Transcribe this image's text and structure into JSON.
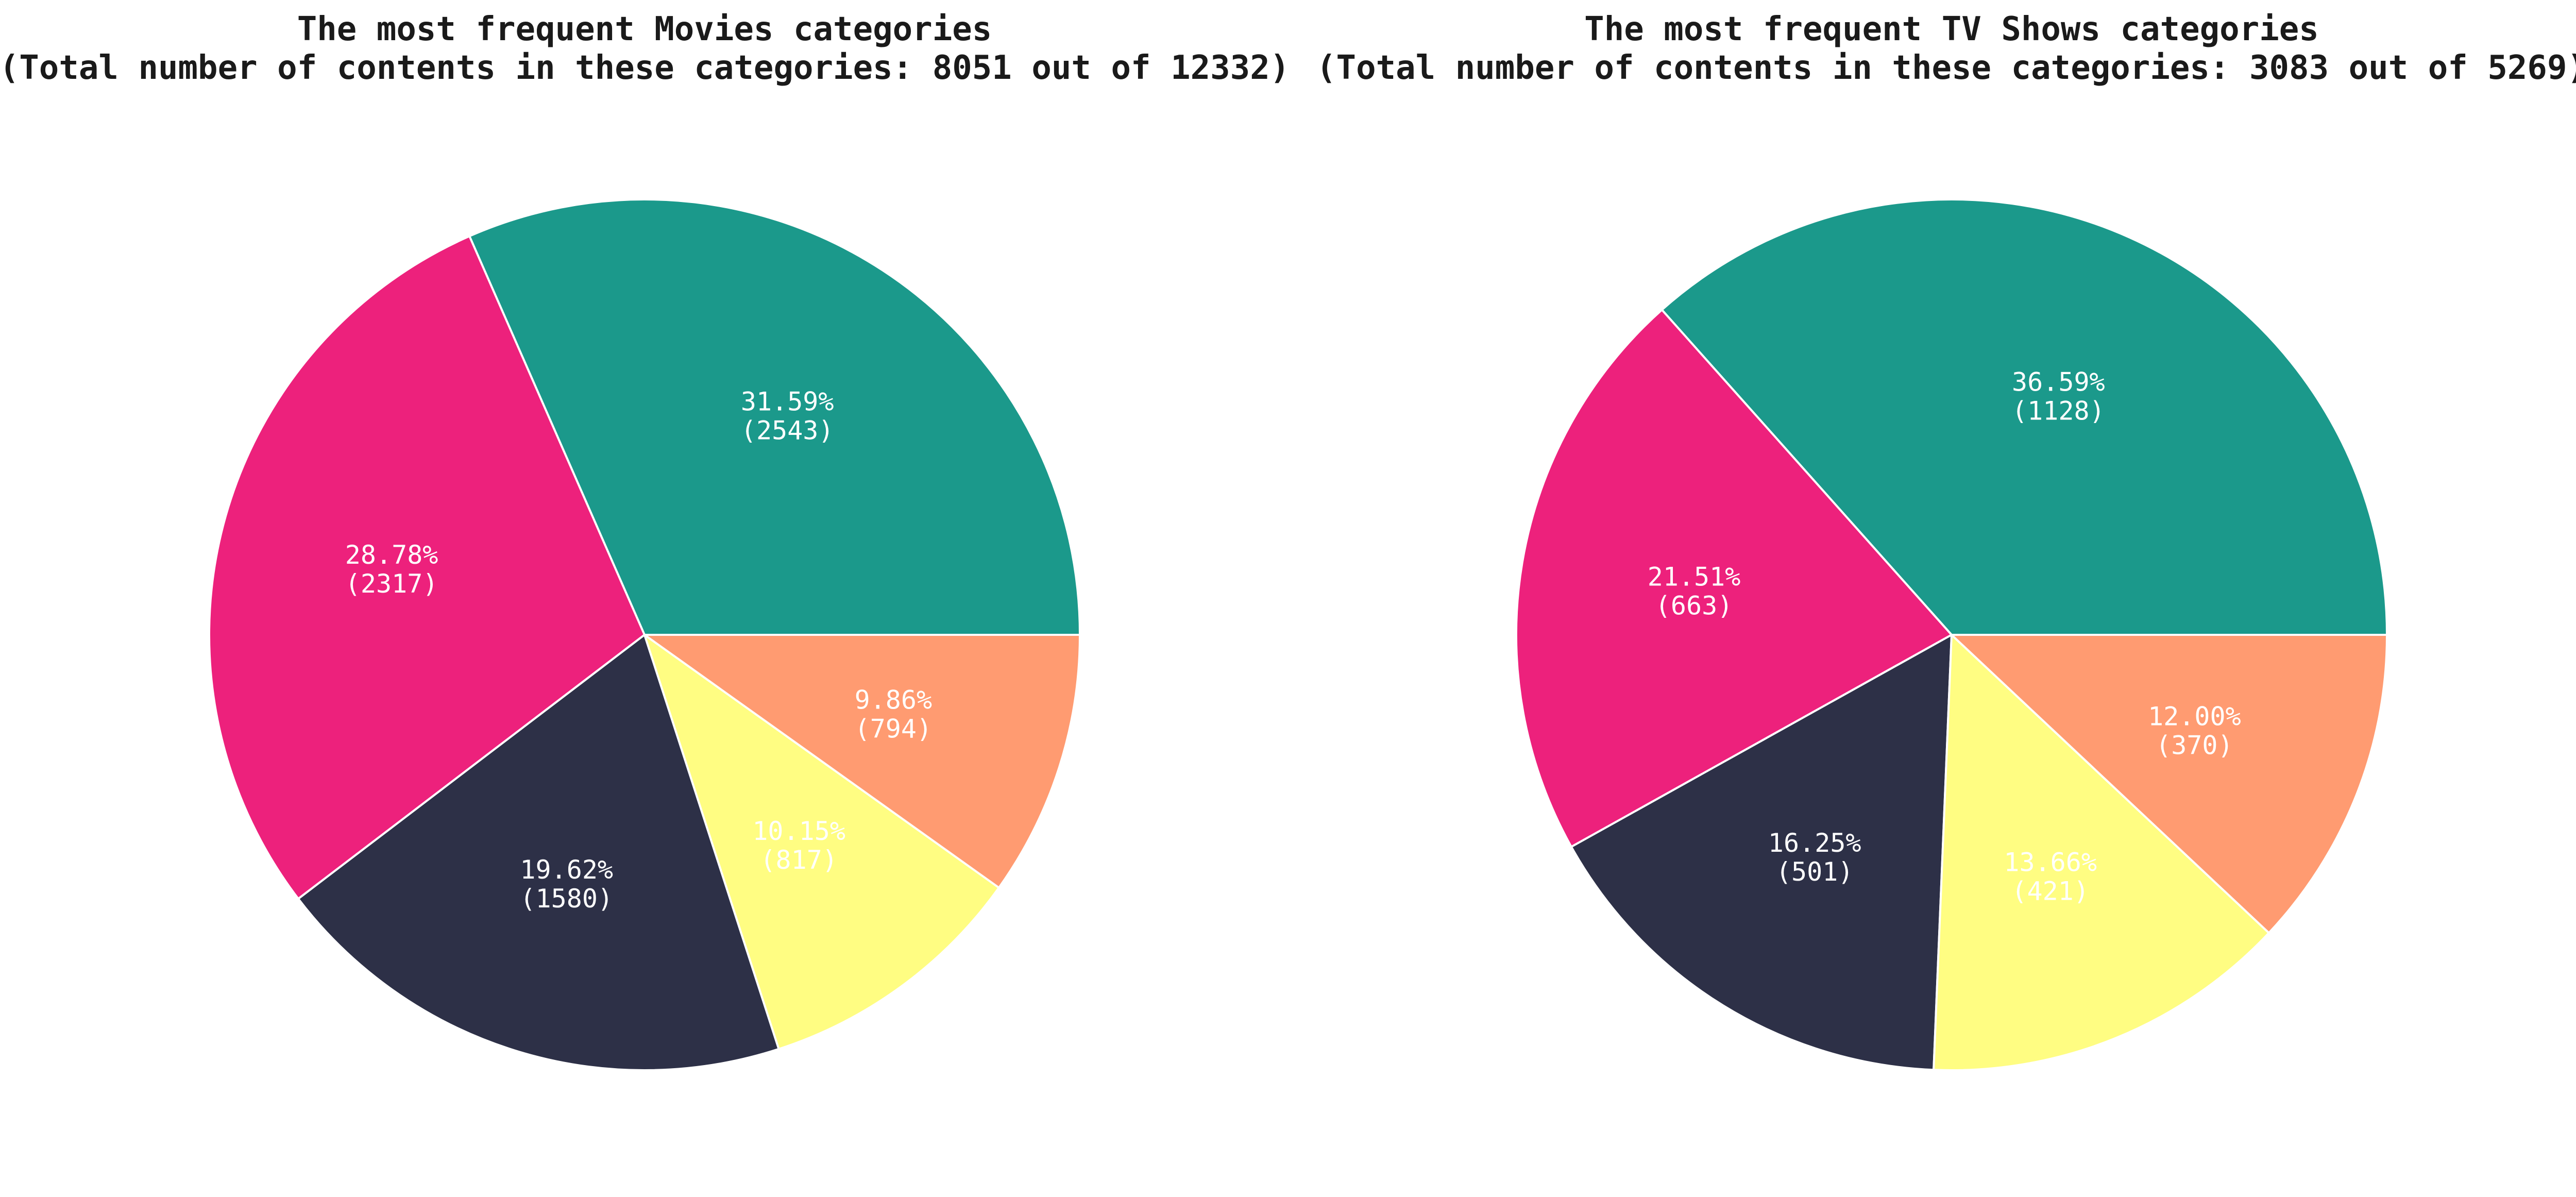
{
  "chart_data": [
    {
      "type": "pie",
      "title": "The most frequent Movies categories",
      "subtitle": "(Total number of contents in these categories: 8051 out of 12332)",
      "slices": [
        {
          "value": 2543,
          "percent_label": "31.59%",
          "count_label": "(2543)",
          "color": "#1b998b"
        },
        {
          "value": 2317,
          "percent_label": "28.78%",
          "count_label": "(2317)",
          "color": "#ed217c"
        },
        {
          "value": 1580,
          "percent_label": "19.62%",
          "count_label": "(1580)",
          "color": "#2d3047"
        },
        {
          "value": 817,
          "percent_label": "10.15%",
          "count_label": "(817)",
          "color": "#fffd82"
        },
        {
          "value": 794,
          "percent_label": "9.86%",
          "count_label": "(794)",
          "color": "#ff9b71"
        }
      ],
      "start_angle_deg": 0,
      "direction": "counterclockwise",
      "legend": "none"
    },
    {
      "type": "pie",
      "title": "The most frequent TV Shows categories",
      "subtitle": "(Total number of contents in these categories: 3083 out of 5269)",
      "slices": [
        {
          "value": 1128,
          "percent_label": "36.59%",
          "count_label": "(1128)",
          "color": "#1b998b"
        },
        {
          "value": 663,
          "percent_label": "21.51%",
          "count_label": "(663)",
          "color": "#ed217c"
        },
        {
          "value": 501,
          "percent_label": "16.25%",
          "count_label": "(501)",
          "color": "#2d3047"
        },
        {
          "value": 421,
          "percent_label": "13.66%",
          "count_label": "(421)",
          "color": "#fffd82"
        },
        {
          "value": 370,
          "percent_label": "12.00%",
          "count_label": "(370)",
          "color": "#ff9b71"
        }
      ],
      "start_angle_deg": 0,
      "direction": "counterclockwise",
      "legend": "none"
    }
  ]
}
